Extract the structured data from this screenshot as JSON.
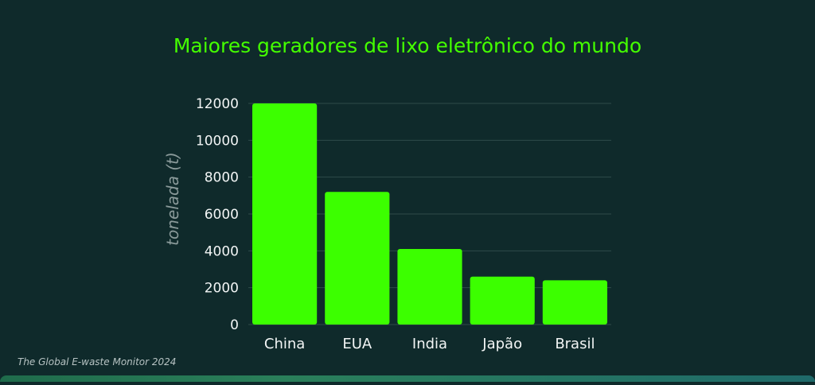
{
  "chart_data": {
    "type": "bar",
    "title": "Maiores geradores de lixo eletrônico do mundo",
    "xlabel": "",
    "ylabel": "tonelada (t)",
    "categories": [
      "China",
      "EUA",
      "India",
      "Japão",
      "Brasil"
    ],
    "values": [
      12000,
      7200,
      4100,
      2600,
      2400
    ],
    "yticks": [
      "0",
      "2000",
      "4000",
      "6000",
      "8000",
      "10000",
      "12000"
    ],
    "ylim": [
      0,
      12000
    ],
    "grid": true,
    "bar_color": "#3cff00",
    "title_color": "#44ff00",
    "background_color": "#0f2a2b"
  },
  "source_note": "The Global E-waste Monitor 2024"
}
